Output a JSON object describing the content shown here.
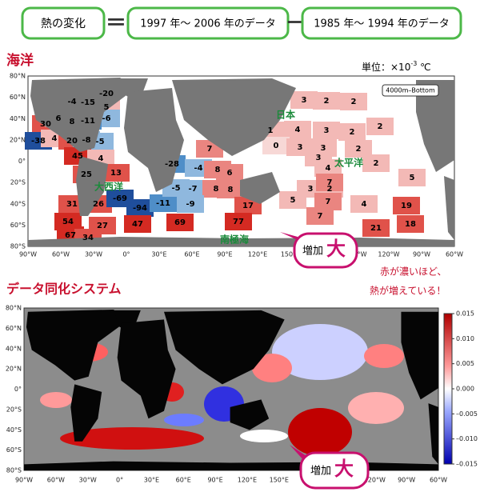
{
  "header": {
    "box1": "熱の変化",
    "equals": "＝",
    "box2": "1997 年〜 2006 年のデータ",
    "minus": "ー",
    "box3": "1985 年〜 1994 年のデータ"
  },
  "ocean": {
    "title": "海洋",
    "unit_prefix": "単位：×10",
    "unit_exp": "-3",
    "unit_suffix": " ℃",
    "layer": "4000m–Bottom",
    "regions": [
      "日本",
      "太平洋",
      "大西洋",
      "南極海"
    ],
    "values": [
      -20,
      -4,
      -15,
      5,
      -6,
      30,
      6,
      8,
      -11,
      -38,
      4,
      20,
      -8,
      -5,
      45,
      4,
      25,
      13,
      31,
      26,
      -69,
      -94,
      -11,
      54,
      27,
      47,
      69,
      67,
      34,
      7,
      -28,
      -4,
      8,
      6,
      -5,
      -7,
      8,
      8,
      -9,
      17,
      77,
      3,
      2,
      2,
      1,
      4,
      3,
      2,
      2,
      0,
      3,
      3,
      2,
      4,
      3,
      2,
      5,
      3,
      2,
      7,
      7,
      4,
      5,
      7,
      19,
      21,
      18
    ]
  },
  "axes": {
    "lat": [
      "80°N",
      "60°N",
      "40°N",
      "20°N",
      "0°",
      "20°S",
      "40°S",
      "60°S",
      "80°S"
    ],
    "lon": [
      "90°W",
      "60°W",
      "30°W",
      "0°",
      "30°E",
      "60°E",
      "90°E",
      "120°E",
      "150°E",
      "180°",
      "150°W",
      "120°W",
      "90°W",
      "60°W"
    ]
  },
  "callout": {
    "small": "増加",
    "big": "大"
  },
  "note": [
    "赤が濃いほど、",
    "熱が増えている！"
  ],
  "assim": {
    "title": "データ同化システム",
    "colorbar": {
      "lim": [
        -0.015,
        0.015
      ],
      "ticks": [
        {
          "value": 0.015,
          "label": "0.015"
        },
        {
          "value": 0.01,
          "label": "0.010"
        },
        {
          "value": 0.005,
          "label": "0.005"
        },
        {
          "value": 0,
          "label": "0.000"
        },
        {
          "value": -0.005,
          "label": "–0.005"
        },
        {
          "value": -0.01,
          "label": "–0.010"
        },
        {
          "value": -0.015,
          "label": "–0.015"
        }
      ]
    }
  }
}
